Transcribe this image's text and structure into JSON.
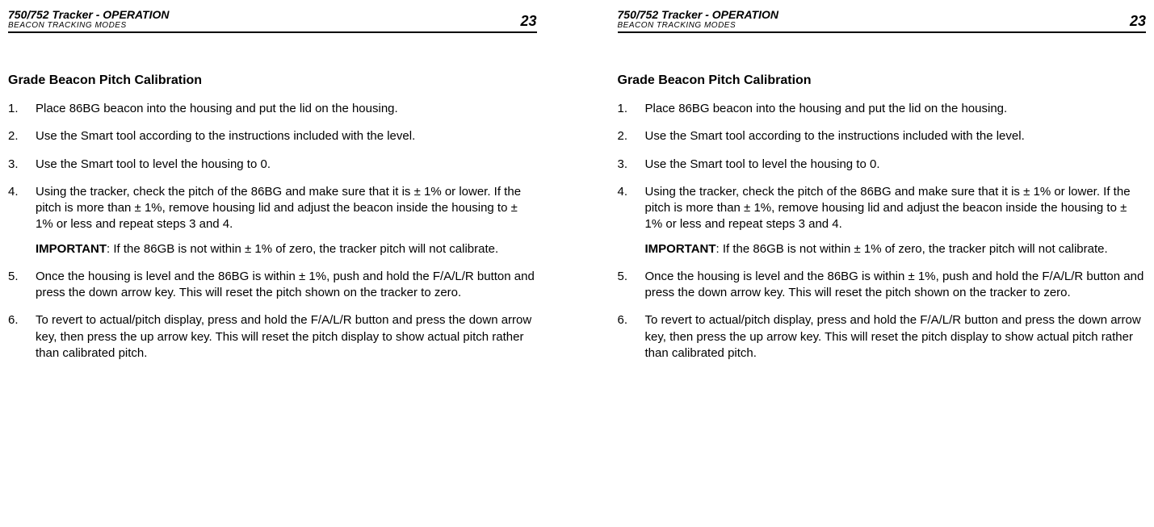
{
  "header": {
    "title": "750/752 Tracker - OPERATION",
    "subtitle": "BEACON TRACKING MODES",
    "page_number": "23"
  },
  "section": {
    "title": "Grade Beacon Pitch Calibration"
  },
  "steps": {
    "s1": "Place 86BG beacon into the housing and put the lid on the housing.",
    "s2": "Use the Smart tool according to the instructions included with the level.",
    "s3": "Use the Smart tool to level the housing to 0.",
    "s4": "Using the tracker, check the pitch of the 86BG and make sure that it is ± 1% or lower. If the pitch is more than ± 1%, remove housing lid and adjust the beacon inside the housing to ± 1% or less and repeat steps 3 and 4.",
    "s4_note_label": "IMPORTANT",
    "s4_note_text": ": If the 86GB is not within ± 1% of zero, the tracker pitch will not calibrate.",
    "s5": "Once the housing is level and the 86BG is within ± 1%, push and hold the F/A/L/R button and press the down arrow key. This will reset the pitch shown on the tracker to zero.",
    "s6": "To revert to actual/pitch display, press and hold the F/A/L/R button and press the down arrow key, then press the up arrow key. This will reset the pitch display to show actual pitch rather than calibrated pitch."
  }
}
